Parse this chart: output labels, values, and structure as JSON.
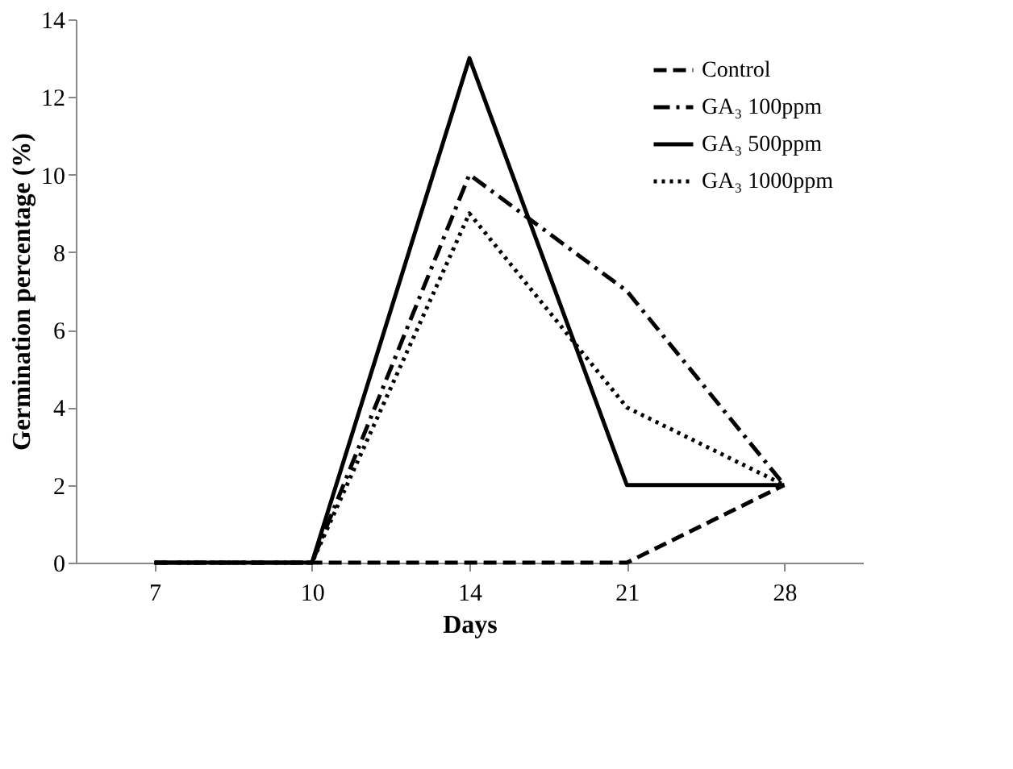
{
  "chart_data": {
    "type": "line",
    "xlabel": "Days",
    "ylabel": "Germination percentage (%)",
    "categories": [
      "7",
      "10",
      "14",
      "21",
      "28"
    ],
    "series": [
      {
        "name": "Control",
        "color": "#000000",
        "line_style": "dashed",
        "values": [
          0,
          0,
          0,
          0,
          2
        ]
      },
      {
        "name": "GA₃ 100ppm",
        "color": "#000000",
        "line_style": "dashdot",
        "values": [
          0,
          0,
          10,
          7,
          2
        ]
      },
      {
        "name": "GA₃ 500ppm",
        "color": "#000000",
        "line_style": "solid",
        "values": [
          0,
          0,
          13,
          2,
          2
        ]
      },
      {
        "name": "GA₃ 1000ppm",
        "color": "#000000",
        "line_style": "dotted",
        "values": [
          0,
          0,
          9,
          4,
          2
        ]
      }
    ],
    "ylim": [
      0,
      14
    ],
    "yticks": [
      0,
      2,
      4,
      6,
      8,
      10,
      12,
      14
    ],
    "grid": false,
    "legend": "top right",
    "marker": "none"
  }
}
